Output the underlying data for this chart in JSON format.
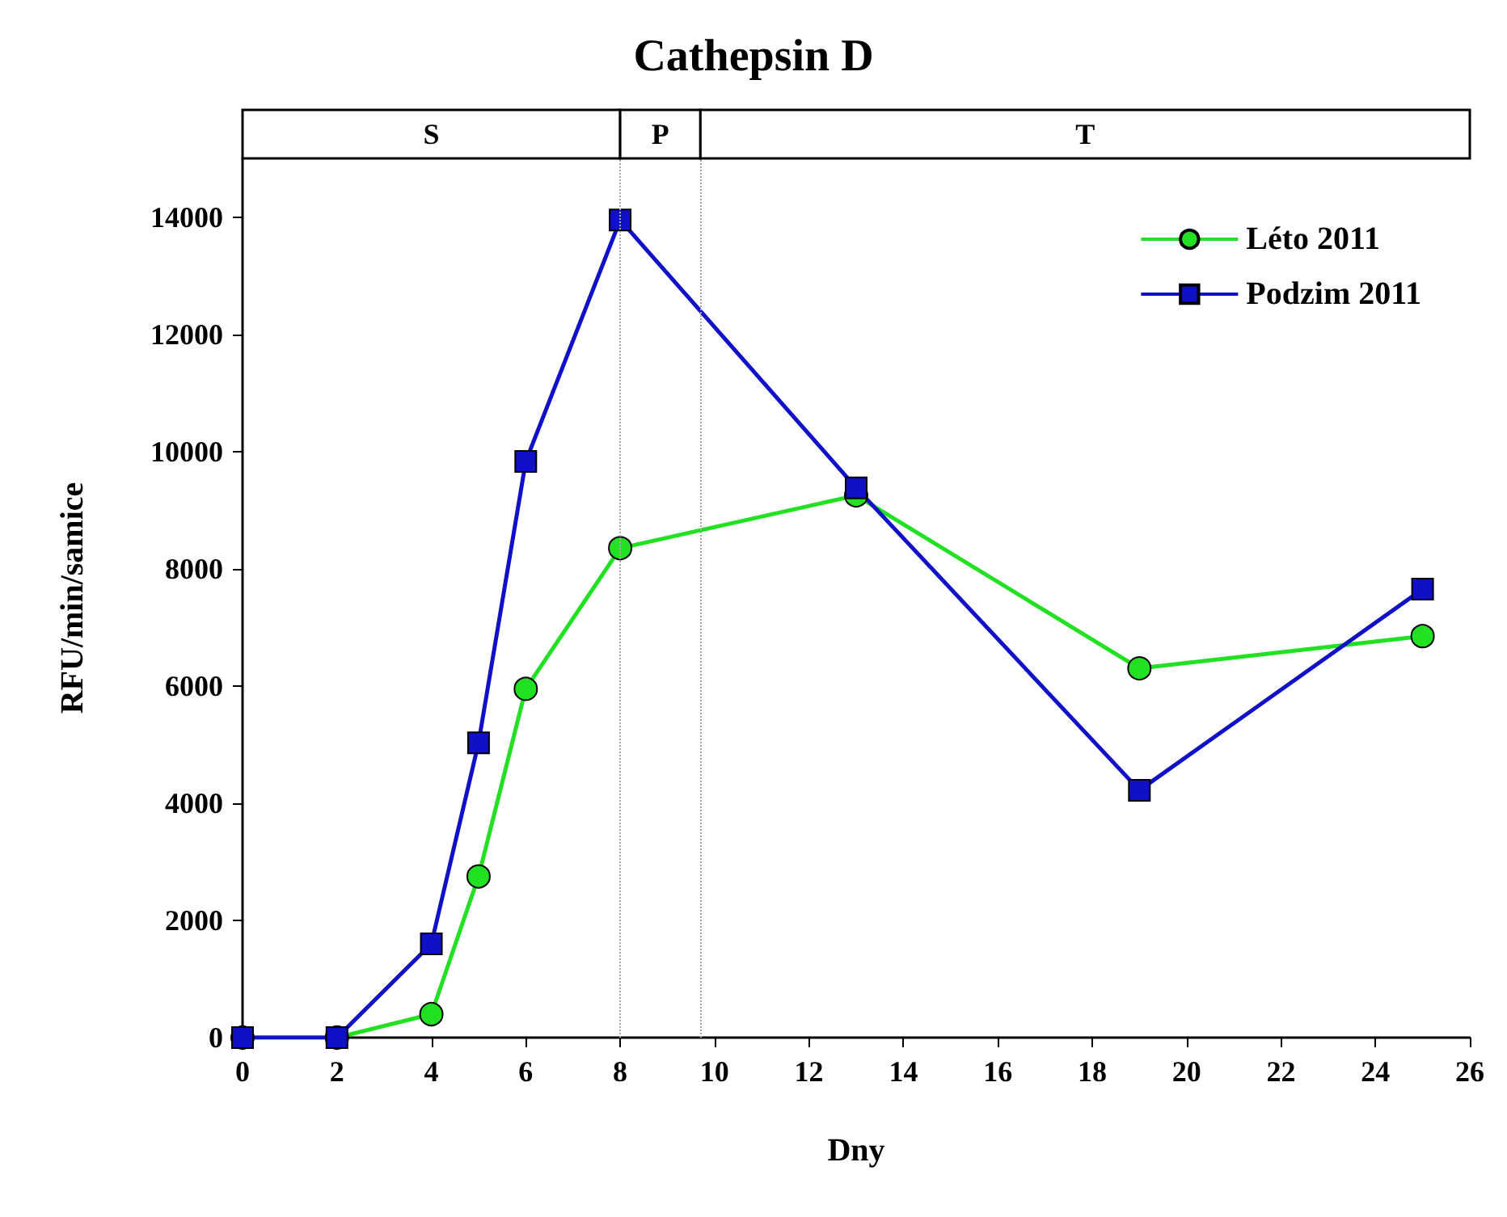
{
  "chart_data": {
    "type": "line",
    "title": "Cathepsin D",
    "xlabel": "Dny",
    "ylabel": "RFU/min/samice",
    "x": [
      0,
      2,
      4,
      5,
      6,
      8,
      13,
      19,
      25
    ],
    "series": [
      {
        "name": "Léto 2011",
        "color": "#22e022",
        "marker": "circle",
        "values": [
          0,
          0,
          400,
          2750,
          5950,
          8350,
          9250,
          6300,
          6850
        ]
      },
      {
        "name": "Podzim 2011",
        "color": "#1010c8",
        "marker": "square",
        "values": [
          0,
          0,
          1600,
          5030,
          9830,
          13950,
          9380,
          4220,
          7650
        ]
      }
    ],
    "xlim": [
      0,
      26
    ],
    "xticks": [
      0,
      2,
      4,
      6,
      8,
      10,
      12,
      14,
      16,
      18,
      20,
      22,
      24,
      26
    ],
    "ylim": [
      0,
      15000
    ],
    "yticks": [
      0,
      2000,
      4000,
      6000,
      8000,
      10000,
      12000,
      14000
    ],
    "ref_lines": [
      {
        "axis": "x",
        "value": 8,
        "line_style": "dotted",
        "color": "#aaaaaa"
      },
      {
        "axis": "x",
        "value": 9.7,
        "line_style": "dotted",
        "color": "#aaaaaa"
      }
    ],
    "annotations": [
      "S",
      "P",
      "T"
    ],
    "grid": false,
    "legend": "top right",
    "line_style": "solid"
  }
}
